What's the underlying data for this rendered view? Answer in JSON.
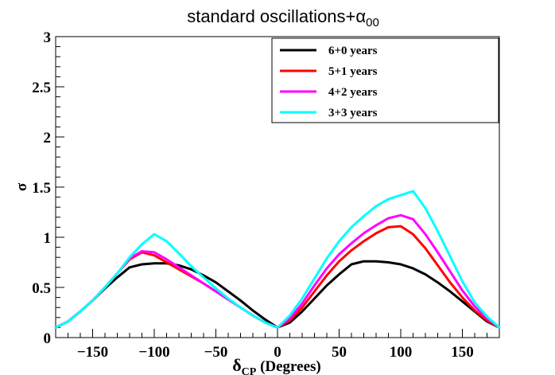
{
  "chart_data": {
    "type": "line",
    "title": "standard oscillations+α",
    "title_subscript": "00",
    "xlabel": "δ",
    "xlabel_subscript": "CP",
    "xlabel_suffix": " (Degrees)",
    "ylabel": "σ",
    "xlim": [
      -180,
      180
    ],
    "ylim": [
      0,
      3
    ],
    "xticks": [
      -150,
      -100,
      -50,
      0,
      50,
      100,
      150
    ],
    "xtick_labels": [
      "−150",
      "−100",
      "−50",
      "0",
      "50",
      "100",
      "150"
    ],
    "yticks": [
      0,
      0.5,
      1,
      1.5,
      2,
      2.5,
      3
    ],
    "ytick_labels": [
      "0",
      "0.5",
      "1",
      "1.5",
      "2",
      "2.5",
      "3"
    ],
    "legend_position": "top-right",
    "series": [
      {
        "name": "6+0 years",
        "color": "#000000",
        "x": [
          -180,
          -170,
          -160,
          -150,
          -140,
          -130,
          -120,
          -110,
          -100,
          -90,
          -80,
          -70,
          -60,
          -50,
          -40,
          -30,
          -20,
          -10,
          0,
          10,
          20,
          30,
          40,
          50,
          60,
          70,
          80,
          90,
          100,
          110,
          120,
          130,
          140,
          150,
          160,
          170,
          180
        ],
        "y": [
          0.1,
          0.16,
          0.26,
          0.37,
          0.49,
          0.6,
          0.7,
          0.73,
          0.74,
          0.74,
          0.72,
          0.68,
          0.62,
          0.55,
          0.46,
          0.37,
          0.27,
          0.18,
          0.1,
          0.15,
          0.26,
          0.39,
          0.52,
          0.63,
          0.73,
          0.76,
          0.76,
          0.75,
          0.73,
          0.69,
          0.63,
          0.55,
          0.46,
          0.36,
          0.26,
          0.16,
          0.1
        ]
      },
      {
        "name": "5+1 years",
        "color": "#ff0000",
        "x": [
          -180,
          -170,
          -160,
          -150,
          -140,
          -130,
          -120,
          -110,
          -100,
          -90,
          -80,
          -70,
          -60,
          -50,
          -40,
          -30,
          -20,
          -10,
          0,
          10,
          20,
          30,
          40,
          50,
          60,
          70,
          80,
          90,
          100,
          110,
          120,
          130,
          140,
          150,
          160,
          170,
          180
        ],
        "y": [
          0.1,
          0.16,
          0.26,
          0.37,
          0.5,
          0.64,
          0.78,
          0.85,
          0.82,
          0.75,
          0.68,
          0.61,
          0.54,
          0.46,
          0.38,
          0.3,
          0.22,
          0.15,
          0.1,
          0.17,
          0.3,
          0.46,
          0.62,
          0.76,
          0.87,
          0.96,
          1.04,
          1.1,
          1.11,
          1.03,
          0.89,
          0.72,
          0.55,
          0.4,
          0.27,
          0.17,
          0.1
        ]
      },
      {
        "name": "4+2 years",
        "color": "#ff00ff",
        "x": [
          -180,
          -170,
          -160,
          -150,
          -140,
          -130,
          -120,
          -110,
          -100,
          -90,
          -80,
          -70,
          -60,
          -50,
          -40,
          -30,
          -20,
          -10,
          0,
          10,
          20,
          30,
          40,
          50,
          60,
          70,
          80,
          90,
          100,
          110,
          120,
          130,
          140,
          150,
          160,
          170,
          180
        ],
        "y": [
          0.1,
          0.16,
          0.26,
          0.37,
          0.5,
          0.64,
          0.79,
          0.86,
          0.85,
          0.78,
          0.7,
          0.62,
          0.54,
          0.46,
          0.38,
          0.3,
          0.22,
          0.15,
          0.1,
          0.19,
          0.34,
          0.52,
          0.69,
          0.83,
          0.94,
          1.04,
          1.12,
          1.19,
          1.22,
          1.18,
          1.03,
          0.85,
          0.66,
          0.47,
          0.31,
          0.19,
          0.1
        ]
      },
      {
        "name": "3+3 years",
        "color": "#00ffff",
        "x": [
          -180,
          -170,
          -160,
          -150,
          -140,
          -130,
          -120,
          -110,
          -100,
          -90,
          -80,
          -70,
          -60,
          -50,
          -40,
          -30,
          -20,
          -10,
          0,
          10,
          20,
          30,
          40,
          50,
          60,
          70,
          80,
          90,
          100,
          110,
          120,
          130,
          140,
          150,
          160,
          170,
          180
        ],
        "y": [
          0.1,
          0.16,
          0.26,
          0.37,
          0.5,
          0.64,
          0.8,
          0.93,
          1.03,
          0.96,
          0.84,
          0.71,
          0.6,
          0.49,
          0.39,
          0.3,
          0.22,
          0.15,
          0.1,
          0.22,
          0.39,
          0.59,
          0.79,
          0.96,
          1.1,
          1.21,
          1.31,
          1.38,
          1.42,
          1.46,
          1.29,
          1.06,
          0.81,
          0.56,
          0.35,
          0.21,
          0.1
        ]
      }
    ]
  }
}
